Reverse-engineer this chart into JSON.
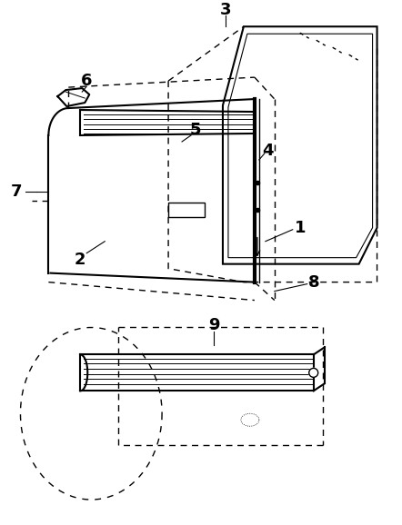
{
  "background_color": "#ffffff",
  "line_color": "#000000",
  "fig_width": 4.42,
  "fig_height": 5.78,
  "dpi": 100,
  "label_fontsize": 13,
  "label_fontweight": "bold"
}
